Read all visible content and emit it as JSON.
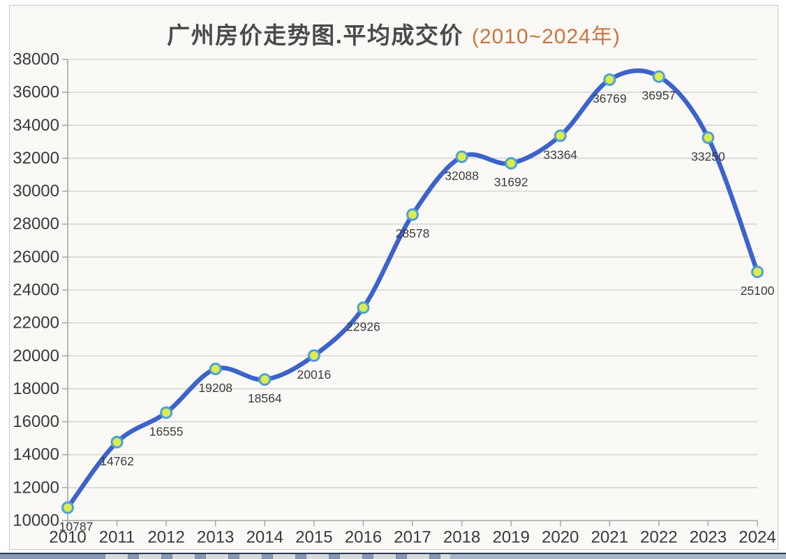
{
  "title": {
    "main": "广州房价走势图.平均成交价",
    "range": "(2010~2024年)"
  },
  "chart_data": {
    "type": "line",
    "title": "广州房价走势图.平均成交价",
    "subtitle": "(2010~2024年)",
    "categories": [
      "2010",
      "2011",
      "2012",
      "2013",
      "2014",
      "2015",
      "2016",
      "2017",
      "2018",
      "2019",
      "2020",
      "2021",
      "2022",
      "2023",
      "2024"
    ],
    "series": [
      {
        "name": "平均成交价",
        "values": [
          10787,
          14762,
          16555,
          19208,
          18564,
          20016,
          22926,
          28578,
          32088,
          31692,
          33364,
          36769,
          36957,
          33250,
          25100
        ]
      }
    ],
    "ylim": [
      10000,
      38000
    ],
    "ytick_step": 2000,
    "grid": "horizontal-only",
    "legend": "none",
    "data_labels": true,
    "smooth": true,
    "colors": {
      "line": "#3B63CB",
      "marker_fill": "#DCEC4D",
      "marker_stroke": "#4FA0D8",
      "grid": "#D8D6D2",
      "axis": "#A8A6A3",
      "tick_label": "#3A3A3A",
      "data_label": "#3C3C3C",
      "title": "#4A4A4A",
      "subtitle": "#C9753F"
    }
  }
}
